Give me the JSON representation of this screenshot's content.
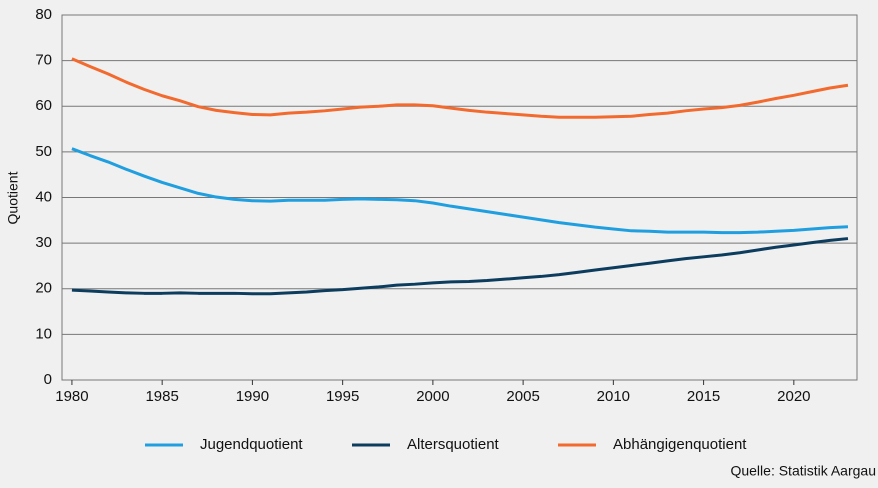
{
  "chart_data": {
    "type": "line",
    "y_label": "Quotient",
    "source": "Quelle: Statistik Aargau",
    "x": [
      1980,
      1981,
      1982,
      1983,
      1984,
      1985,
      1986,
      1987,
      1988,
      1989,
      1990,
      1991,
      1992,
      1993,
      1994,
      1995,
      1996,
      1997,
      1998,
      1999,
      2000,
      2001,
      2002,
      2003,
      2004,
      2005,
      2006,
      2007,
      2008,
      2009,
      2010,
      2011,
      2012,
      2013,
      2014,
      2015,
      2016,
      2017,
      2018,
      2019,
      2020,
      2021,
      2022,
      2023
    ],
    "series": [
      {
        "name": "Jugendquotient",
        "color": "#1f9fdf",
        "values": [
          50.7,
          49.2,
          47.8,
          46.2,
          44.7,
          43.3,
          42.1,
          40.9,
          40.1,
          39.6,
          39.3,
          39.2,
          39.4,
          39.4,
          39.4,
          39.6,
          39.7,
          39.6,
          39.5,
          39.3,
          38.8,
          38.1,
          37.5,
          36.9,
          36.3,
          35.7,
          35.1,
          34.5,
          34.0,
          33.5,
          33.1,
          32.7,
          32.6,
          32.4,
          32.4,
          32.4,
          32.3,
          32.3,
          32.4,
          32.6,
          32.8,
          33.1,
          33.4,
          33.6
        ]
      },
      {
        "name": "Altersquotient",
        "color": "#0d3d5e",
        "values": [
          19.7,
          19.5,
          19.3,
          19.1,
          19.0,
          19.0,
          19.1,
          19.0,
          19.0,
          19.0,
          18.9,
          18.9,
          19.1,
          19.3,
          19.6,
          19.8,
          20.1,
          20.4,
          20.8,
          21.0,
          21.3,
          21.5,
          21.6,
          21.8,
          22.1,
          22.4,
          22.7,
          23.1,
          23.6,
          24.1,
          24.6,
          25.1,
          25.6,
          26.1,
          26.6,
          27.0,
          27.4,
          27.9,
          28.5,
          29.1,
          29.6,
          30.1,
          30.6,
          31.0
        ]
      },
      {
        "name": "Abhängigenquotient",
        "color": "#f26a2e",
        "values": [
          70.4,
          68.7,
          67.1,
          65.3,
          63.7,
          62.3,
          61.2,
          59.9,
          59.1,
          58.6,
          58.2,
          58.1,
          58.5,
          58.7,
          59.0,
          59.4,
          59.8,
          60.0,
          60.3,
          60.3,
          60.1,
          59.6,
          59.1,
          58.7,
          58.4,
          58.1,
          57.8,
          57.6,
          57.6,
          57.6,
          57.7,
          57.8,
          58.2,
          58.5,
          59.0,
          59.4,
          59.7,
          60.2,
          60.9,
          61.7,
          62.4,
          63.2,
          64.0,
          64.6
        ]
      }
    ],
    "xlim": [
      1979.45,
      2023.5
    ],
    "xticks": [
      1980,
      1985,
      1990,
      1995,
      2000,
      2005,
      2010,
      2015,
      2020
    ],
    "ylim": [
      0,
      80
    ],
    "yticks": [
      0,
      10,
      20,
      30,
      40,
      50,
      60,
      70,
      80
    ],
    "grid": true
  }
}
